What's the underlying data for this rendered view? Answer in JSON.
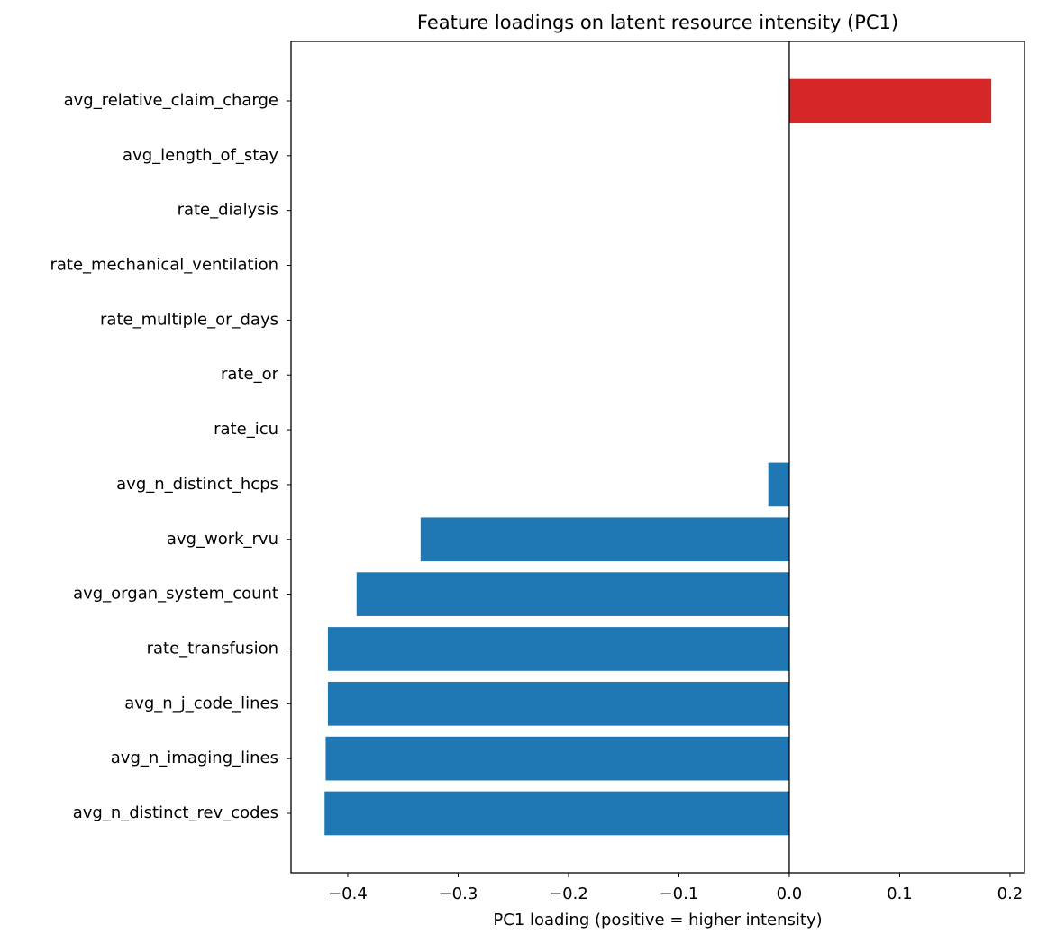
{
  "chart_data": {
    "type": "barh",
    "title": "Feature loadings on latent resource intensity (PC1)",
    "xlabel": "PC1 loading (positive = higher intensity)",
    "categories": [
      "avg_relative_claim_charge",
      "avg_length_of_stay",
      "rate_dialysis",
      "rate_mechanical_ventilation",
      "rate_multiple_or_days",
      "rate_or",
      "rate_icu",
      "avg_n_distinct_hcps",
      "avg_work_rvu",
      "avg_organ_system_count",
      "rate_transfusion",
      "avg_n_j_code_lines",
      "avg_n_imaging_lines",
      "avg_n_distinct_rev_codes"
    ],
    "values": [
      0.183,
      0,
      0,
      0,
      0,
      0,
      0,
      -0.019,
      -0.334,
      -0.392,
      -0.418,
      -0.418,
      -0.42,
      -0.421
    ],
    "colors": [
      "#d62728",
      "#1f77b4",
      "#1f77b4",
      "#1f77b4",
      "#1f77b4",
      "#1f77b4",
      "#1f77b4",
      "#1f77b4",
      "#1f77b4",
      "#1f77b4",
      "#1f77b4",
      "#1f77b4",
      "#1f77b4",
      "#1f77b4"
    ],
    "xlim": [
      -0.4514,
      0.2131
    ],
    "xticks": [
      {
        "value": -0.4,
        "label": "−0.4"
      },
      {
        "value": -0.3,
        "label": "−0.3"
      },
      {
        "value": -0.2,
        "label": "−0.2"
      },
      {
        "value": -0.1,
        "label": "−0.1"
      },
      {
        "value": 0,
        "label": "0.0"
      },
      0.1,
      0.2
    ],
    "zero_line": true
  }
}
